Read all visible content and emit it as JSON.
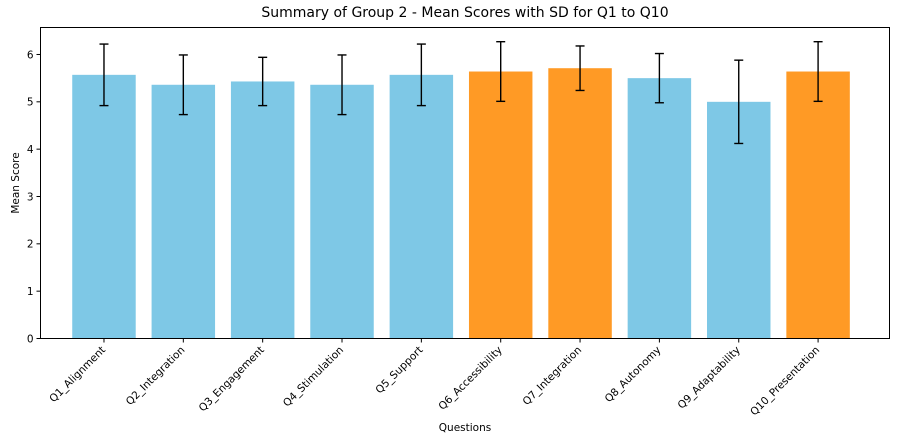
{
  "chart_data": {
    "type": "bar",
    "title": "Summary of Group 2 - Mean Scores with SD for Q1 to Q10",
    "xlabel": "Questions",
    "ylabel": "Mean Score",
    "categories": [
      "Q1_Alignment",
      "Q2_Integration",
      "Q3_Engagement",
      "Q4_Stimulation",
      "Q5_Support",
      "Q6_Accessibility",
      "Q7_Integration",
      "Q8_Autonomy",
      "Q9_Adaptability",
      "Q10_Presentation"
    ],
    "values": [
      5.57,
      5.36,
      5.43,
      5.36,
      5.57,
      5.64,
      5.71,
      5.5,
      5.0,
      5.64
    ],
    "error_sd": [
      0.65,
      0.63,
      0.51,
      0.63,
      0.65,
      0.63,
      0.47,
      0.52,
      0.88,
      0.63
    ],
    "bar_colors": [
      "#7ec8e6",
      "#7ec8e6",
      "#7ec8e6",
      "#7ec8e6",
      "#7ec8e6",
      "#ff9a25",
      "#ff9a25",
      "#7ec8e6",
      "#7ec8e6",
      "#ff9a25"
    ],
    "ylim": [
      0,
      6.57
    ],
    "yticks": [
      0,
      1,
      2,
      3,
      4,
      5,
      6
    ],
    "grid": false,
    "legend": "none"
  }
}
